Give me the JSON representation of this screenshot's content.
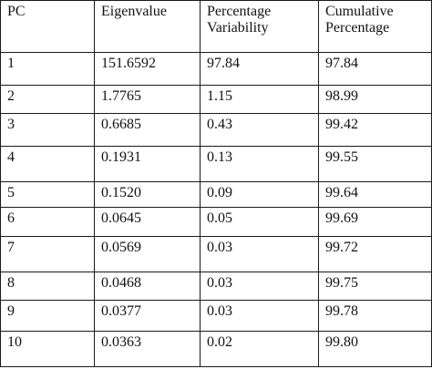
{
  "table": {
    "headers": [
      "PC",
      "Eigenvalue",
      "Percentage Variability",
      "Cumulative Percentage"
    ],
    "rows": [
      [
        "1",
        "151.6592",
        "97.84",
        "97.84"
      ],
      [
        "2",
        "1.7765",
        "1.15",
        "98.99"
      ],
      [
        "3",
        "0.6685",
        "0.43",
        "99.42"
      ],
      [
        "4",
        "0.1931",
        "0.13",
        "99.55"
      ],
      [
        "5",
        "0.1520",
        "0.09",
        "99.64"
      ],
      [
        "6",
        "0.0645",
        "0.05",
        "99.69"
      ],
      [
        "7",
        "0.0569",
        "0.03",
        "99.72"
      ],
      [
        "8",
        "0.0468",
        "0.03",
        "99.75"
      ],
      [
        "9",
        "0.0377",
        "0.03",
        "99.78"
      ],
      [
        "10",
        "0.0363",
        "0.02",
        "99.80"
      ]
    ]
  }
}
